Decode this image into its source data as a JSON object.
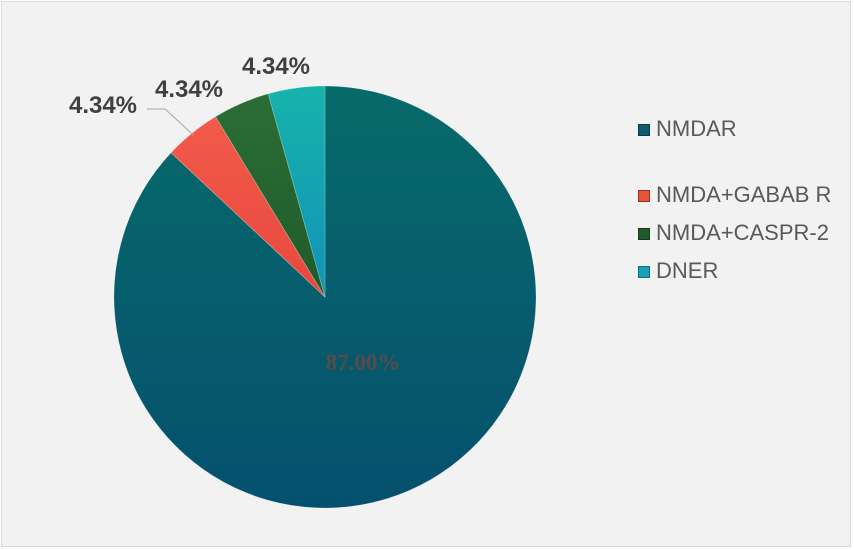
{
  "chart_data": {
    "type": "pie",
    "title": "",
    "categories": [
      "NMDAR",
      "NMDA+GABAB R",
      "NMDA+CASPR-2",
      "DNER"
    ],
    "values": [
      87.0,
      4.34,
      4.34,
      4.34
    ],
    "data_labels": [
      "87.00%",
      "4.34%",
      "4.34%",
      "4.34%"
    ],
    "legend_labels": [
      "NMDAR",
      "NMDA+GABAB R",
      "NMDA+CASPR-2",
      "DNER"
    ],
    "colors": [
      "#05506e",
      "#e8483c",
      "#1f5a2a",
      "#1193b8"
    ],
    "colors_light": [
      "#076a6a",
      "#f25a4a",
      "#2b6e35",
      "#17b3ab"
    ],
    "legend_position": "right",
    "start_angle_deg": 0,
    "direction": "clockwise",
    "legend": {
      "items": [
        {
          "label": "NMDAR",
          "color": "#0f5a6e"
        },
        {
          "label": "NMDA+GABAB R",
          "color": "#e8533a"
        },
        {
          "label": "NMDA+CASPR-2",
          "color": "#1f5a2a"
        },
        {
          "label": "DNER",
          "color": "#1aa3b8"
        }
      ]
    }
  }
}
